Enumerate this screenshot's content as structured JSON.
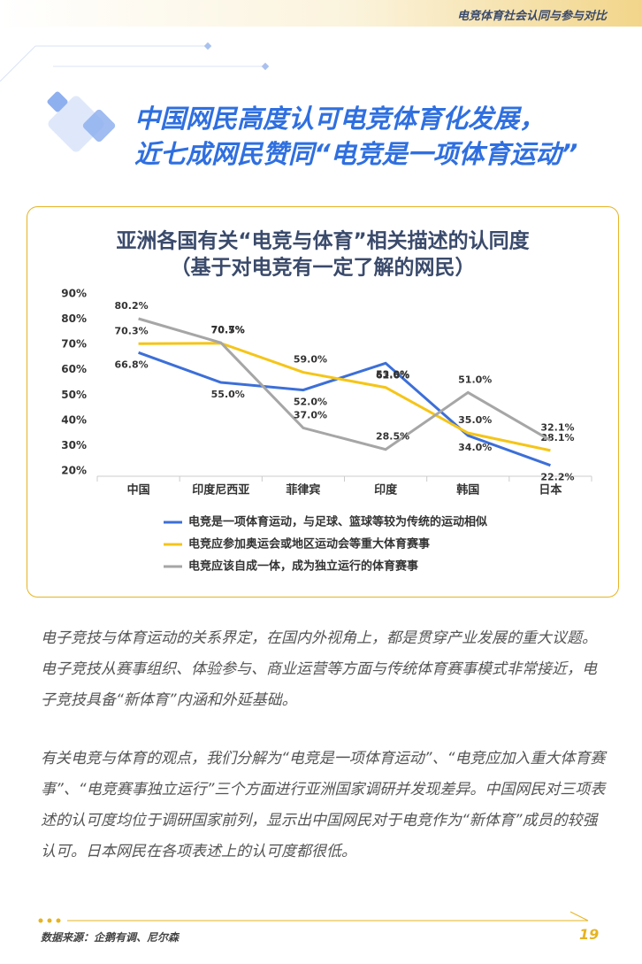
{
  "header": {
    "title": "电竞体育社会认同与参与对比"
  },
  "headline": [
    "中国网民高度认可电竞体育化发展，",
    "近七成网民赞同“电竞是一项体育运动”"
  ],
  "chart_data": {
    "type": "line",
    "title": "亚洲各国有关“电竞与体育”相关描述的认同度",
    "subtitle": "（基于对电竞有一定了解的网民）",
    "categories": [
      "中国",
      "印度尼西亚",
      "菲律宾",
      "印度",
      "韩国",
      "日本"
    ],
    "series": [
      {
        "name": "电竞是一项体育运动，与足球、篮球等较为传统的运动相似",
        "color": "#3c6fd8",
        "values": [
          66.8,
          55.0,
          52.0,
          62.6,
          34.0,
          22.2
        ],
        "value_labels": [
          "66.8%",
          "55.0%",
          "52.0%",
          "62.6%",
          "34.0%",
          "22.2%"
        ]
      },
      {
        "name": "电竞应参加奥运会或地区运动会等重大体育赛事",
        "color": "#f5c518",
        "values": [
          70.3,
          70.5,
          59.0,
          53.0,
          35.0,
          28.1
        ],
        "value_labels": [
          "70.3%",
          "70.5%",
          "59.0%",
          "53.0%",
          "35.0%",
          "28.1%"
        ]
      },
      {
        "name": "电竞应该自成一体，成为独立运行的体育赛事",
        "color": "#a6a6a6",
        "values": [
          80.2,
          70.7,
          37.0,
          28.5,
          51.0,
          32.1
        ],
        "value_labels": [
          "80.2%",
          "70.7%",
          "37.0%",
          "28.5%",
          "51.0%",
          "32.1%"
        ]
      }
    ],
    "ylim": [
      20,
      90
    ],
    "yticks": [
      {
        "value": 20,
        "label": "20%"
      },
      {
        "value": 30,
        "label": "30%"
      },
      {
        "value": 40,
        "label": "40%"
      },
      {
        "value": 50,
        "label": "50%"
      },
      {
        "value": 60,
        "label": "60%"
      },
      {
        "value": 70,
        "label": "70%"
      },
      {
        "value": 80,
        "label": "80%"
      },
      {
        "value": 90,
        "label": "90%"
      }
    ],
    "grid": false
  },
  "paragraphs": [
    "电子竞技与体育运动的关系界定，在国内外视角上，都是贯穿产业发展的重大议题。电子竞技从赛事组织、体验参与、商业运营等方面与传统体育赛事模式非常接近，电子竞技具备“新体育”内涵和外延基础。",
    "有关电竞与体育的观点，我们分解为“电竞是一项体育运动”、“电竞应加入重大体育赛事”、“电竞赛事独立运行”三个方面进行亚洲国家调研并发现差异。中国网民对三项表述的认可度均位于调研国家前列，显示出中国网民对于电竞作为“新体育”成员的较强认可。日本网民在各项表述上的认可度都很低。"
  ],
  "footer": {
    "source": "数据来源：企鹅有调、尼尔森",
    "page": "19"
  }
}
